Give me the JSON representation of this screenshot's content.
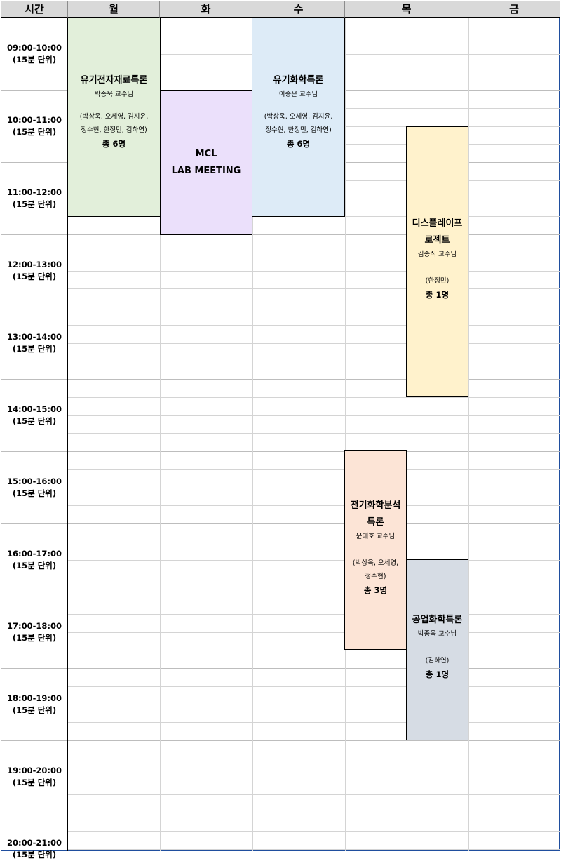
{
  "header": {
    "time_label": "시간",
    "days": [
      "월",
      "화",
      "수",
      "목",
      "금"
    ]
  },
  "time_slots": [
    {
      "range": "09:00-10:00",
      "unit": "(15분 단위)"
    },
    {
      "range": "10:00-11:00",
      "unit": "(15분 단위)"
    },
    {
      "range": "11:00-12:00",
      "unit": "(15분 단위)"
    },
    {
      "range": "12:00-13:00",
      "unit": "(15분 단위)"
    },
    {
      "range": "13:00-14:00",
      "unit": "(15분 단위)"
    },
    {
      "range": "14:00-15:00",
      "unit": "(15분 단위)"
    },
    {
      "range": "15:00-16:00",
      "unit": "(15분 단위)"
    },
    {
      "range": "16:00-17:00",
      "unit": "(15분 단위)"
    },
    {
      "range": "17:00-18:00",
      "unit": "(15분 단위)"
    },
    {
      "range": "18:00-19:00",
      "unit": "(15분 단위)"
    },
    {
      "range": "19:00-20:00",
      "unit": "(15분 단위)"
    },
    {
      "range": "20:00-21:00",
      "unit": "(15분 단위)"
    }
  ],
  "events": {
    "mon": {
      "title": "유기전자재료특론",
      "professor": "박종욱 교수님",
      "participants_line1": "(박상욱, 오세영, 김지윤,",
      "participants_line2": "정수현, 한정민, 김하연)",
      "count": "총 6명",
      "color": "#e2efda"
    },
    "tue": {
      "title_line1": "MCL",
      "title_line2": "LAB MEETING",
      "color": "#ebe0fb"
    },
    "wed": {
      "title": "유기화학특론",
      "professor": "이승은 교수님",
      "participants_line1": "(박상욱, 오세영, 김지윤,",
      "participants_line2": "정수현, 한정민, 김하연)",
      "count": "총 6명",
      "color": "#ddebf7"
    },
    "thu_display": {
      "title_line1": "디스플레이프",
      "title_line2": "로젝트",
      "professor": "김종식 교수님",
      "participants": "(한정민)",
      "count": "총 1명",
      "color": "#fff2cc"
    },
    "thu_electro": {
      "title_line1": "전기화학분석",
      "title_line2": "특론",
      "professor": "윤태호 교수님",
      "participants_line1": "(박상욱, 오세영,",
      "participants_line2": "정수현)",
      "count": "총 3명",
      "color": "#fce4d6"
    },
    "thu_industrial": {
      "title": "공업화학특론",
      "professor": "박종욱 교수님",
      "participants": "(김하연)",
      "count": "총 1명",
      "color": "#d6dce4"
    }
  }
}
